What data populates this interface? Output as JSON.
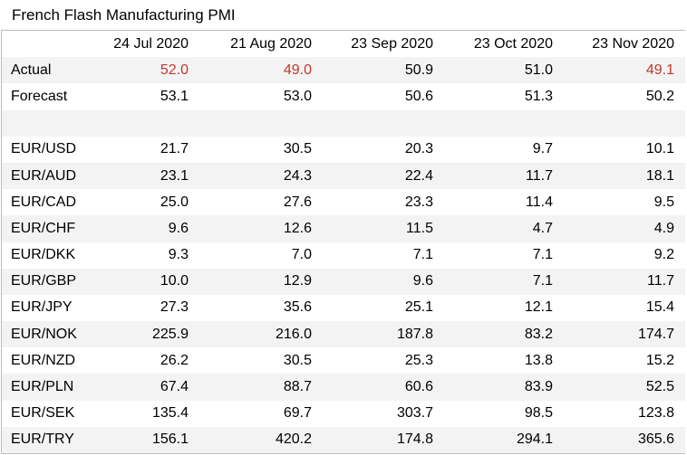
{
  "title": "French Flash Manufacturing PMI",
  "columns": [
    "24 Jul 2020",
    "21 Aug 2020",
    "23 Sep 2020",
    "23 Oct 2020",
    "23 Nov 2020"
  ],
  "colors": {
    "miss": "#c0392b",
    "band": "#f3f3f3"
  },
  "rows": [
    {
      "label": "Actual",
      "values": [
        "52.0",
        "49.0",
        "50.9",
        "51.0",
        "49.1"
      ],
      "miss": [
        true,
        true,
        false,
        false,
        true
      ]
    },
    {
      "label": "Forecast",
      "values": [
        "53.1",
        "53.0",
        "50.6",
        "51.3",
        "50.2"
      ]
    },
    {
      "label": "",
      "values": [
        "",
        "",
        "",
        "",
        ""
      ]
    },
    {
      "label": "EUR/USD",
      "values": [
        "21.7",
        "30.5",
        "20.3",
        "9.7",
        "10.1"
      ]
    },
    {
      "label": "EUR/AUD",
      "values": [
        "23.1",
        "24.3",
        "22.4",
        "11.7",
        "18.1"
      ]
    },
    {
      "label": "EUR/CAD",
      "values": [
        "25.0",
        "27.6",
        "23.3",
        "11.4",
        "9.5"
      ]
    },
    {
      "label": "EUR/CHF",
      "values": [
        "9.6",
        "12.6",
        "11.5",
        "4.7",
        "4.9"
      ]
    },
    {
      "label": "EUR/DKK",
      "values": [
        "9.3",
        "7.0",
        "7.1",
        "7.1",
        "9.2"
      ]
    },
    {
      "label": "EUR/GBP",
      "values": [
        "10.0",
        "12.9",
        "9.6",
        "7.1",
        "11.7"
      ]
    },
    {
      "label": "EUR/JPY",
      "values": [
        "27.3",
        "35.6",
        "25.1",
        "12.1",
        "15.4"
      ]
    },
    {
      "label": "EUR/NOK",
      "values": [
        "225.9",
        "216.0",
        "187.8",
        "83.2",
        "174.7"
      ]
    },
    {
      "label": "EUR/NZD",
      "values": [
        "26.2",
        "30.5",
        "25.3",
        "13.8",
        "15.2"
      ]
    },
    {
      "label": "EUR/PLN",
      "values": [
        "67.4",
        "88.7",
        "60.6",
        "83.9",
        "52.5"
      ]
    },
    {
      "label": "EUR/SEK",
      "values": [
        "135.4",
        "69.7",
        "303.7",
        "98.5",
        "123.8"
      ]
    },
    {
      "label": "EUR/TRY",
      "values": [
        "156.1",
        "420.2",
        "174.8",
        "294.1",
        "365.6"
      ]
    }
  ]
}
